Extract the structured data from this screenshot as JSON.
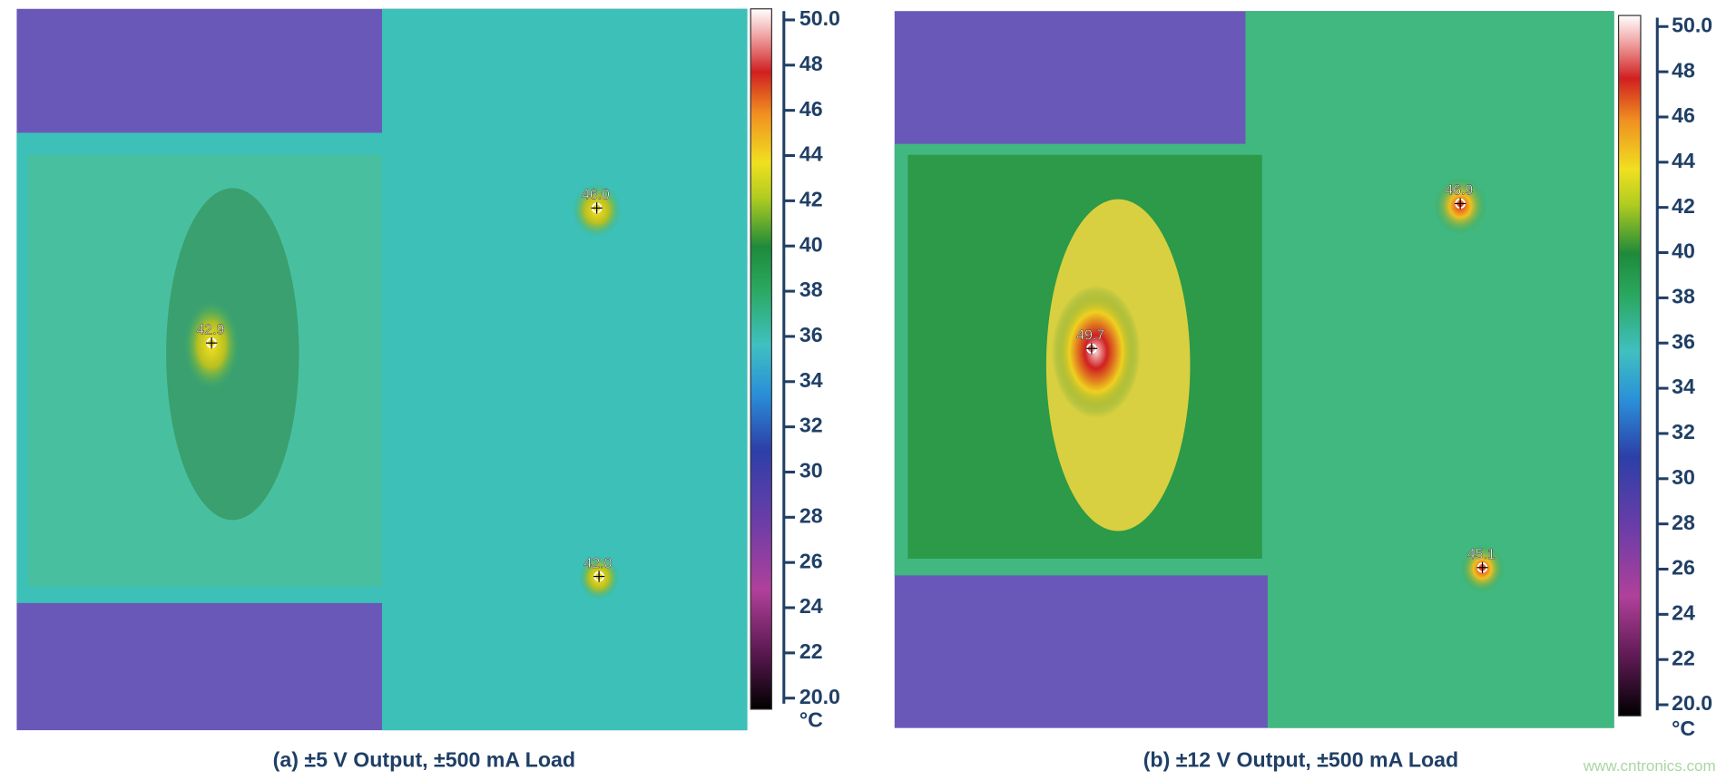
{
  "panels": [
    {
      "caption": "(a) ±5 V Output, ±500 mA Load",
      "hotspots": [
        "46.0",
        "42.9",
        "42.0"
      ],
      "colorbar": {
        "ylim": [
          20,
          50
        ],
        "yticks": [
          {
            "value": 50,
            "label": "50.0"
          },
          48,
          46,
          44,
          42,
          40,
          38,
          36,
          34,
          32,
          30,
          28,
          26,
          24,
          22,
          {
            "value": 20,
            "label": "20.0"
          }
        ],
        "unit": "°C"
      }
    },
    {
      "caption": "(b) ±12 V Output, ±500 mA Load",
      "hotspots": [
        "46.9",
        "49.7",
        "45.1"
      ],
      "colorbar": {
        "ylim": [
          20,
          50
        ],
        "yticks": [
          {
            "value": 50,
            "label": "50.0"
          },
          48,
          46,
          44,
          42,
          40,
          38,
          36,
          34,
          32,
          30,
          28,
          26,
          24,
          22,
          {
            "value": 20,
            "label": "20.0"
          }
        ],
        "unit": "°C"
      }
    }
  ],
  "watermark": "www.cntronics.com"
}
